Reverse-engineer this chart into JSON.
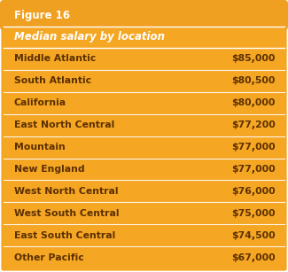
{
  "figure_title": "Figure 16",
  "table_header": "Median salary by location",
  "rows": [
    [
      "Middle Atlantic",
      "$85,000"
    ],
    [
      "South Atlantic",
      "$80,500"
    ],
    [
      "California",
      "$80,000"
    ],
    [
      "East North Central",
      "$77,200"
    ],
    [
      "Mountain",
      "$77,000"
    ],
    [
      "New England",
      "$77,000"
    ],
    [
      "West North Central",
      "$76,000"
    ],
    [
      "West South Central",
      "$75,000"
    ],
    [
      "East South Central",
      "$74,500"
    ],
    [
      "Other Pacific",
      "$67,000"
    ]
  ],
  "bg_color": "#F5A623",
  "title_bg_color": "#F0A020",
  "header_text_color": "#FFFFFF",
  "row_text_color": "#5C3000",
  "divider_color": "#FFFFFF",
  "outer_border_color": "#FFFFFF",
  "title_fontsize": 8.5,
  "header_fontsize": 8.5,
  "row_fontsize": 7.8
}
